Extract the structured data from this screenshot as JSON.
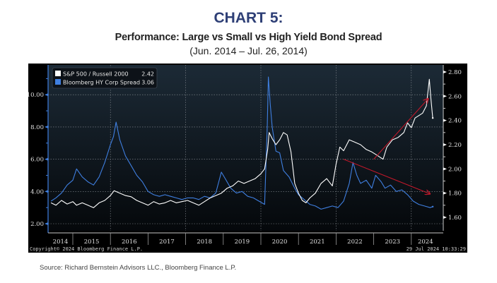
{
  "header": {
    "title": "CHART 5:",
    "subtitle": "Performance: Large vs Small vs High Yield Bond Spread",
    "date_range": "(Jun. 2014 – Jul. 26, 2014)"
  },
  "footer": {
    "source": "Source: Richard Bernstein Advisors LLC., Bloomberg Finance L.P.",
    "copyright": "Copyright© 2024 Bloomberg Finance L.P.",
    "timestamp": "29 Jul 2024 10:33:29"
  },
  "colors": {
    "title": "#2e3f76",
    "series_ratio": "#ffffff",
    "series_spread": "#3f7fe0",
    "annotation_arrow": "#c0182a",
    "panel_bg": "#000000",
    "plot_bg_top": "#1c2a36",
    "plot_bg_bottom": "#05080b"
  },
  "chart_data": {
    "type": "line",
    "title": "Performance: Large vs Small vs High Yield Bond Spread",
    "xlabel": "",
    "x_ticks": [
      "2014",
      "2015",
      "2016",
      "2017",
      "2018",
      "2019",
      "2020",
      "2021",
      "2022",
      "2023",
      "2024"
    ],
    "x_range": [
      2014.42,
      2024.57
    ],
    "y_left": {
      "label": "Bloomberg HY Corp Spread",
      "range": [
        2.0,
        11.0
      ],
      "ticks": [
        "2.00",
        "4.00",
        "6.00",
        "8.00",
        "10.00"
      ]
    },
    "y_right": {
      "label": "S&P 500 / Russell 2000",
      "range": [
        1.6,
        2.8
      ],
      "ticks": [
        "1.60",
        "1.80",
        "2.00",
        "2.20",
        "2.40",
        "2.60",
        "2.80"
      ]
    },
    "grid": true,
    "legend_position": "top-left",
    "legend": [
      {
        "name": "S&P 500 / Russell 2000",
        "last_value": "2.42",
        "axis": "right"
      },
      {
        "name": "Bloomberg HY Corp Spread",
        "last_value": "3.06",
        "axis": "left"
      }
    ],
    "series": [
      {
        "name": "S&P 500 / Russell 2000",
        "axis": "right",
        "x": [
          2014.42,
          2014.55,
          2014.7,
          2014.85,
          2015.0,
          2015.1,
          2015.25,
          2015.4,
          2015.55,
          2015.7,
          2015.85,
          2016.0,
          2016.1,
          2016.25,
          2016.4,
          2016.55,
          2016.7,
          2016.85,
          2017.0,
          2017.15,
          2017.3,
          2017.45,
          2017.6,
          2017.75,
          2017.9,
          2018.05,
          2018.2,
          2018.35,
          2018.5,
          2018.65,
          2018.8,
          2018.95,
          2019.1,
          2019.25,
          2019.4,
          2019.55,
          2019.7,
          2019.85,
          2020.0,
          2020.1,
          2020.18,
          2020.22,
          2020.3,
          2020.4,
          2020.5,
          2020.6,
          2020.7,
          2020.8,
          2020.9,
          2021.0,
          2021.1,
          2021.2,
          2021.3,
          2021.45,
          2021.6,
          2021.75,
          2021.9,
          2022.0,
          2022.1,
          2022.2,
          2022.35,
          2022.5,
          2022.65,
          2022.8,
          2022.95,
          2023.05,
          2023.15,
          2023.25,
          2023.35,
          2023.5,
          2023.65,
          2023.8,
          2023.9,
          2024.0,
          2024.1,
          2024.2,
          2024.3,
          2024.4,
          2024.48,
          2024.52,
          2024.57
        ],
        "values": [
          1.72,
          1.7,
          1.74,
          1.71,
          1.73,
          1.7,
          1.72,
          1.7,
          1.68,
          1.72,
          1.74,
          1.78,
          1.82,
          1.8,
          1.78,
          1.77,
          1.74,
          1.72,
          1.7,
          1.73,
          1.71,
          1.72,
          1.74,
          1.72,
          1.73,
          1.74,
          1.72,
          1.7,
          1.73,
          1.76,
          1.78,
          1.8,
          1.84,
          1.86,
          1.9,
          1.88,
          1.9,
          1.92,
          1.96,
          2.0,
          2.16,
          2.3,
          2.25,
          2.2,
          2.24,
          2.3,
          2.28,
          2.14,
          1.88,
          1.8,
          1.74,
          1.72,
          1.76,
          1.8,
          1.88,
          1.92,
          1.86,
          2.04,
          2.18,
          2.15,
          2.24,
          2.22,
          2.2,
          2.16,
          2.14,
          2.12,
          2.1,
          2.08,
          2.18,
          2.24,
          2.26,
          2.3,
          2.38,
          2.34,
          2.42,
          2.44,
          2.46,
          2.52,
          2.74,
          2.58,
          2.42
        ]
      },
      {
        "name": "Bloomberg HY Corp Spread",
        "axis": "left",
        "x": [
          2014.42,
          2014.55,
          2014.7,
          2014.85,
          2015.0,
          2015.1,
          2015.25,
          2015.4,
          2015.55,
          2015.7,
          2015.85,
          2016.0,
          2016.08,
          2016.15,
          2016.25,
          2016.4,
          2016.55,
          2016.7,
          2016.85,
          2017.0,
          2017.15,
          2017.3,
          2017.45,
          2017.6,
          2017.75,
          2017.9,
          2018.05,
          2018.2,
          2018.35,
          2018.5,
          2018.65,
          2018.8,
          2018.95,
          2019.05,
          2019.2,
          2019.35,
          2019.5,
          2019.65,
          2019.8,
          2019.95,
          2020.1,
          2020.17,
          2020.2,
          2020.25,
          2020.3,
          2020.4,
          2020.5,
          2020.6,
          2020.75,
          2020.9,
          2021.0,
          2021.15,
          2021.3,
          2021.45,
          2021.6,
          2021.75,
          2021.9,
          2022.05,
          2022.2,
          2022.35,
          2022.45,
          2022.55,
          2022.65,
          2022.8,
          2022.95,
          2023.05,
          2023.2,
          2023.3,
          2023.45,
          2023.6,
          2023.75,
          2023.9,
          2024.05,
          2024.2,
          2024.35,
          2024.5,
          2024.57
        ],
        "values": [
          3.4,
          3.6,
          3.9,
          4.4,
          4.7,
          5.4,
          4.9,
          4.6,
          4.4,
          4.9,
          5.8,
          6.9,
          7.4,
          8.3,
          7.2,
          6.2,
          5.6,
          5.0,
          4.6,
          4.0,
          3.8,
          3.7,
          3.8,
          3.7,
          3.6,
          3.5,
          3.6,
          3.6,
          3.5,
          3.7,
          3.6,
          3.9,
          5.2,
          4.8,
          4.2,
          3.9,
          4.0,
          3.7,
          3.6,
          3.4,
          3.2,
          8.0,
          11.1,
          9.4,
          8.0,
          6.5,
          6.4,
          5.3,
          4.9,
          4.2,
          3.8,
          3.5,
          3.2,
          3.1,
          2.9,
          3.0,
          3.1,
          3.0,
          3.4,
          4.5,
          5.8,
          5.0,
          4.5,
          4.7,
          4.2,
          5.0,
          4.6,
          4.2,
          4.4,
          4.0,
          4.1,
          3.8,
          3.4,
          3.2,
          3.1,
          3.0,
          3.06
        ]
      }
    ],
    "annotations": [
      {
        "type": "arrow",
        "description": "rising trend in S&P 500 / Russell 2000",
        "from": [
          2023.0,
          2.08
        ],
        "to": [
          2024.45,
          2.58
        ],
        "axis": "right"
      },
      {
        "type": "arrow",
        "description": "falling trend in HY spread",
        "from": [
          2022.2,
          6.0
        ],
        "to": [
          2024.5,
          3.85
        ],
        "axis": "left"
      }
    ]
  }
}
